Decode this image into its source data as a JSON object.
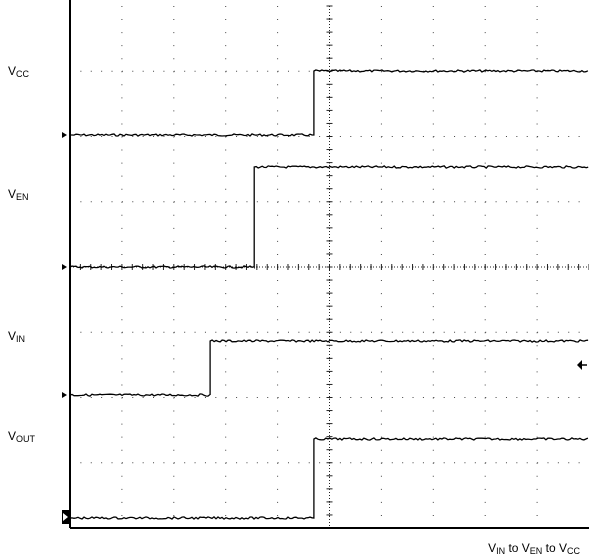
{
  "chart_data": {
    "type": "line",
    "title": "",
    "caption": {
      "parts": [
        {
          "main": "V",
          "sub": "IN"
        },
        {
          "main": " to V",
          "sub": "EN"
        },
        {
          "main": " to V",
          "sub": "CC"
        }
      ]
    },
    "x_divisions": 10,
    "y_divisions": 8,
    "grid": true,
    "series": [
      {
        "name_main": "V",
        "name_sub": "CC",
        "low": 0,
        "high": 1,
        "step_at": 4.7,
        "trace_rows": [
          [
            1.95,
            2.96
          ]
        ]
      },
      {
        "name_main": "V",
        "name_sub": "EN",
        "low": 0,
        "high": 1,
        "step_at": 3.55
      },
      {
        "name_main": "V",
        "name_sub": "IN",
        "low": 0,
        "high": 1,
        "step_at": 2.7
      },
      {
        "name_main": "V",
        "name_sub": "OUT",
        "low": 0,
        "high": 1,
        "step_at": 4.7
      }
    ]
  }
}
